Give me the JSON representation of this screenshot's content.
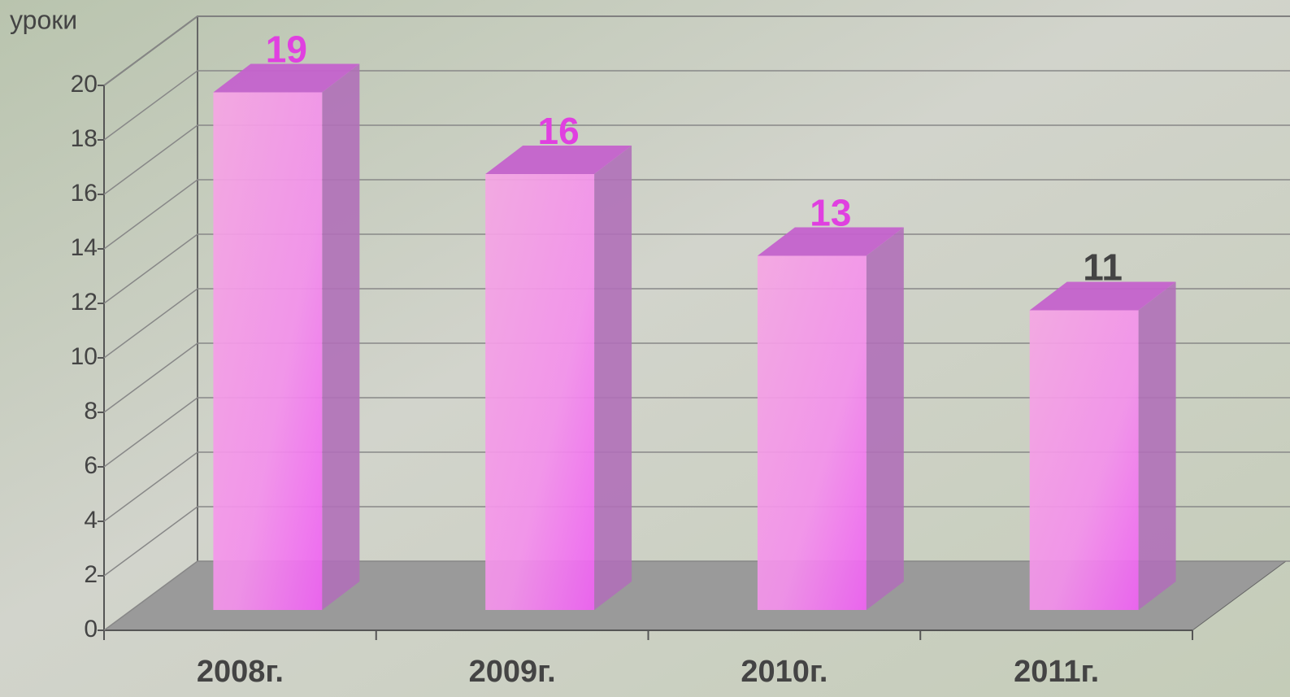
{
  "chart_data": {
    "type": "bar3d",
    "y_label": "уроки",
    "categories": [
      "2008г.",
      "2009г.",
      "2010г.",
      "2011г."
    ],
    "values": [
      19,
      16,
      13,
      11
    ],
    "color": "#f070f0",
    "label_colors": [
      "#e040e0",
      "#e040e0",
      "#e040e0",
      "#444444"
    ],
    "ylim": [
      0,
      20
    ],
    "yticks": [
      0,
      2,
      4,
      6,
      8,
      10,
      12,
      14,
      16,
      18,
      20
    ],
    "grid": true
  }
}
